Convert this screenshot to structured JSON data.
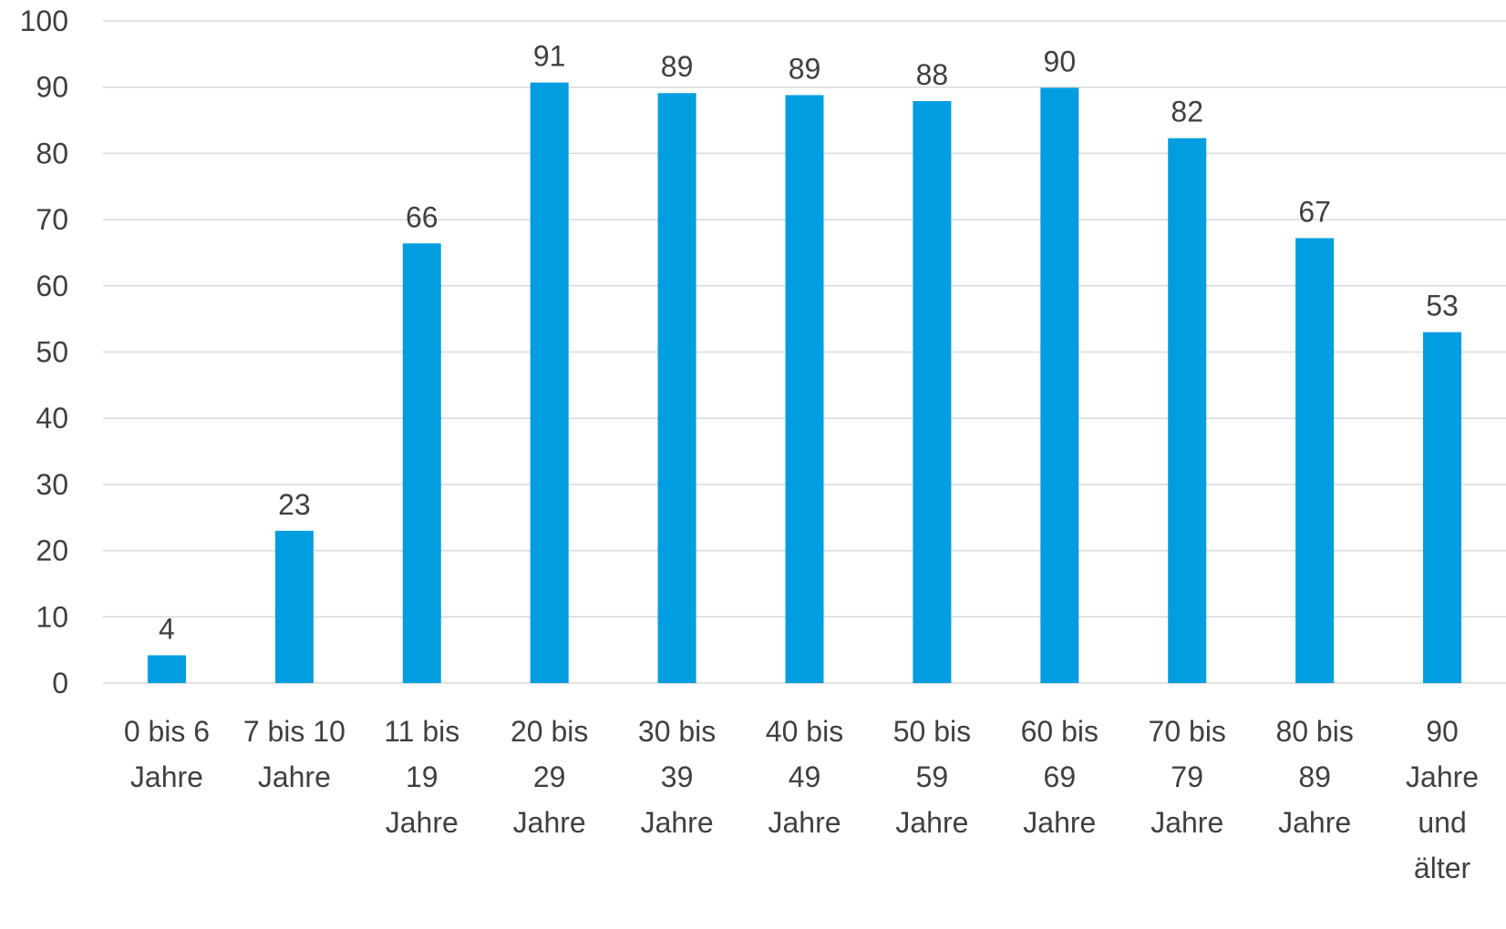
{
  "chart_data": {
    "type": "bar",
    "title": "",
    "xlabel": "",
    "ylabel": "",
    "ylim": [
      0,
      100
    ],
    "yticks": [
      0,
      10,
      20,
      30,
      40,
      50,
      60,
      70,
      80,
      90,
      100
    ],
    "grid": true,
    "categories": [
      [
        "0 bis 6",
        "Jahre"
      ],
      [
        "7 bis 10",
        "Jahre"
      ],
      [
        "11 bis",
        "19",
        "Jahre"
      ],
      [
        "20 bis",
        "29",
        "Jahre"
      ],
      [
        "30 bis",
        "39",
        "Jahre"
      ],
      [
        "40 bis",
        "49",
        "Jahre"
      ],
      [
        "50 bis",
        "59",
        "Jahre"
      ],
      [
        "60 bis",
        "69",
        "Jahre"
      ],
      [
        "70 bis",
        "79",
        "Jahre"
      ],
      [
        "80 bis",
        "89",
        "Jahre"
      ],
      [
        "90",
        "Jahre",
        "und",
        "älter"
      ]
    ],
    "series": [
      {
        "values": [
          4.2,
          23,
          66.4,
          90.7,
          89.1,
          88.8,
          87.9,
          89.9,
          82.3,
          67.2,
          53
        ]
      }
    ],
    "data_labels": [
      "4",
      "23",
      "66",
      "91",
      "89",
      "89",
      "88",
      "90",
      "82",
      "67",
      "53"
    ],
    "colors": {
      "bar": "#009de0",
      "grid": "#d9d9d9",
      "text": "#404040"
    }
  }
}
